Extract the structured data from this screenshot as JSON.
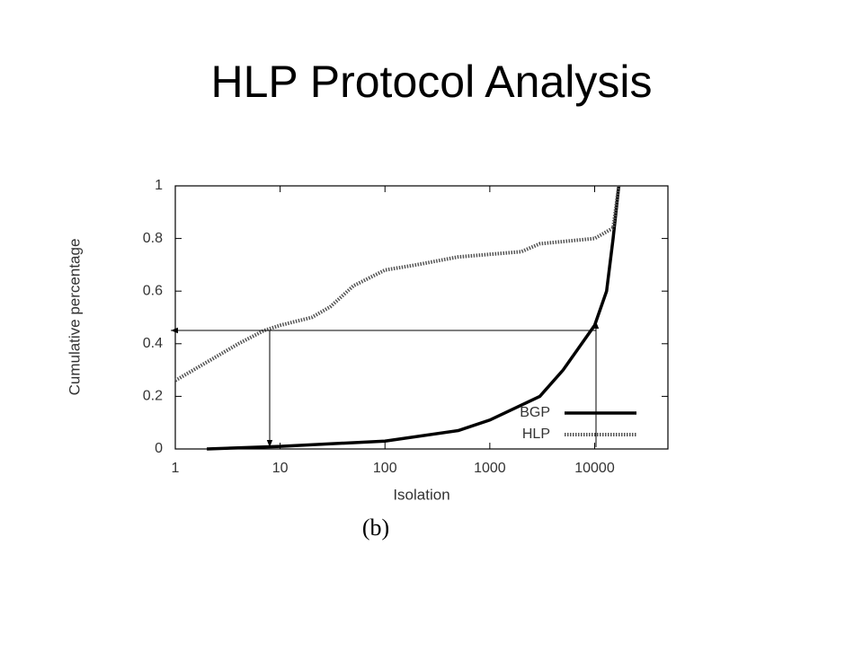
{
  "chart_data": {
    "type": "line",
    "title": "HLP Protocol Analysis",
    "caption": "(b)",
    "x_label": "Isolation",
    "y_label": "Cumulative percentage",
    "x_scale": "log",
    "xlim": [
      1,
      50000
    ],
    "xticks": [
      1,
      10,
      100,
      1000,
      10000
    ],
    "ylim": [
      0,
      1
    ],
    "yticks": [
      0,
      0.2,
      0.4,
      0.6,
      0.8,
      1
    ],
    "legend": "lower right",
    "series": [
      {
        "name": "BGP",
        "color": "#000000",
        "style": "solid",
        "x": [
          2,
          10,
          100,
          500,
          1000,
          3000,
          5000,
          10000,
          13000,
          15000,
          17000
        ],
        "values": [
          0,
          0.01,
          0.03,
          0.07,
          0.11,
          0.2,
          0.3,
          0.47,
          0.6,
          0.8,
          1
        ]
      },
      {
        "name": "HLP",
        "color": "#555555",
        "style": "dotted",
        "x": [
          1,
          2,
          4,
          7,
          10,
          20,
          30,
          50,
          100,
          200,
          500,
          1000,
          2000,
          3000,
          10000,
          15000,
          17000
        ],
        "values": [
          0.26,
          0.33,
          0.4,
          0.45,
          0.47,
          0.5,
          0.54,
          0.62,
          0.68,
          0.7,
          0.73,
          0.74,
          0.75,
          0.78,
          0.8,
          0.84,
          1
        ]
      }
    ]
  }
}
